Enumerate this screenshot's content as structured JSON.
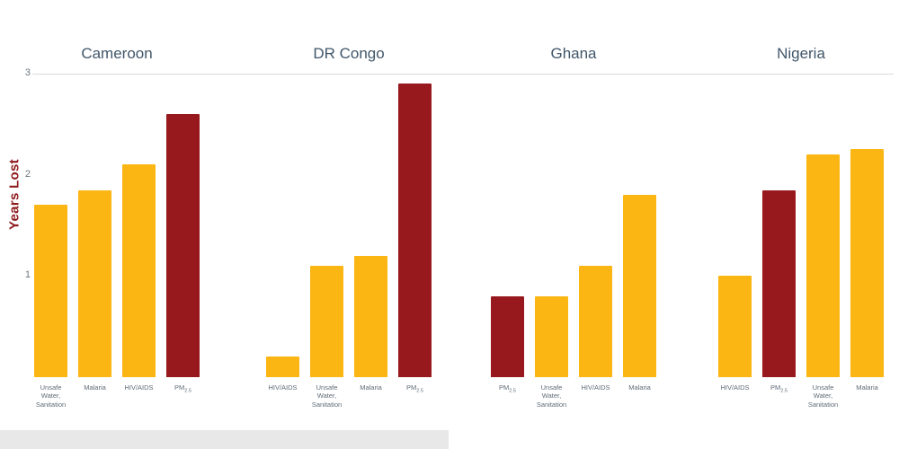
{
  "chart_data": {
    "type": "bar",
    "title": "",
    "ylabel": "Years Lost",
    "ylim": [
      0,
      3
    ],
    "yticks": [
      1,
      2,
      3
    ],
    "grid_lines": [
      3
    ],
    "legend": "none",
    "palette": {
      "yellow": "#fcb614",
      "red": "#97191d"
    },
    "groups": [
      {
        "country": "Cameroon",
        "bars": [
          {
            "label_lines": [
              "Unsafe",
              "Water,",
              "Sanitation"
            ],
            "value": 1.7,
            "color": "yellow"
          },
          {
            "label_lines": [
              "Malaria"
            ],
            "value": 1.85,
            "color": "yellow"
          },
          {
            "label_lines": [
              "HIV/AIDS"
            ],
            "value": 2.1,
            "color": "yellow"
          },
          {
            "label_base": "PM",
            "label_sub": "2.5",
            "value": 2.6,
            "color": "red"
          }
        ]
      },
      {
        "country": "DR Congo",
        "bars": [
          {
            "label_lines": [
              "HIV/AIDS"
            ],
            "value": 0.2,
            "color": "yellow"
          },
          {
            "label_lines": [
              "Unsafe",
              "Water,",
              "Sanitation"
            ],
            "value": 1.1,
            "color": "yellow"
          },
          {
            "label_lines": [
              "Malaria"
            ],
            "value": 1.2,
            "color": "yellow"
          },
          {
            "label_base": "PM",
            "label_sub": "2.5",
            "value": 2.9,
            "color": "red"
          }
        ]
      },
      {
        "country": "Ghana",
        "bars": [
          {
            "label_base": "PM",
            "label_sub": "2.5",
            "value": 0.8,
            "color": "red"
          },
          {
            "label_lines": [
              "Unsafe",
              "Water,",
              "Sanitation"
            ],
            "value": 0.8,
            "color": "yellow"
          },
          {
            "label_lines": [
              "HIV/AIDS"
            ],
            "value": 1.1,
            "color": "yellow"
          },
          {
            "label_lines": [
              "Malaria"
            ],
            "value": 1.8,
            "color": "yellow"
          }
        ]
      },
      {
        "country": "Nigeria",
        "bars": [
          {
            "label_lines": [
              "HIV/AIDS"
            ],
            "value": 1.0,
            "color": "yellow"
          },
          {
            "label_base": "PM",
            "label_sub": "2.5",
            "value": 1.85,
            "color": "red"
          },
          {
            "label_lines": [
              "Unsafe",
              "Water,",
              "Sanitation"
            ],
            "value": 2.2,
            "color": "yellow"
          },
          {
            "label_lines": [
              "Malaria"
            ],
            "value": 2.25,
            "color": "yellow"
          }
        ]
      }
    ]
  }
}
